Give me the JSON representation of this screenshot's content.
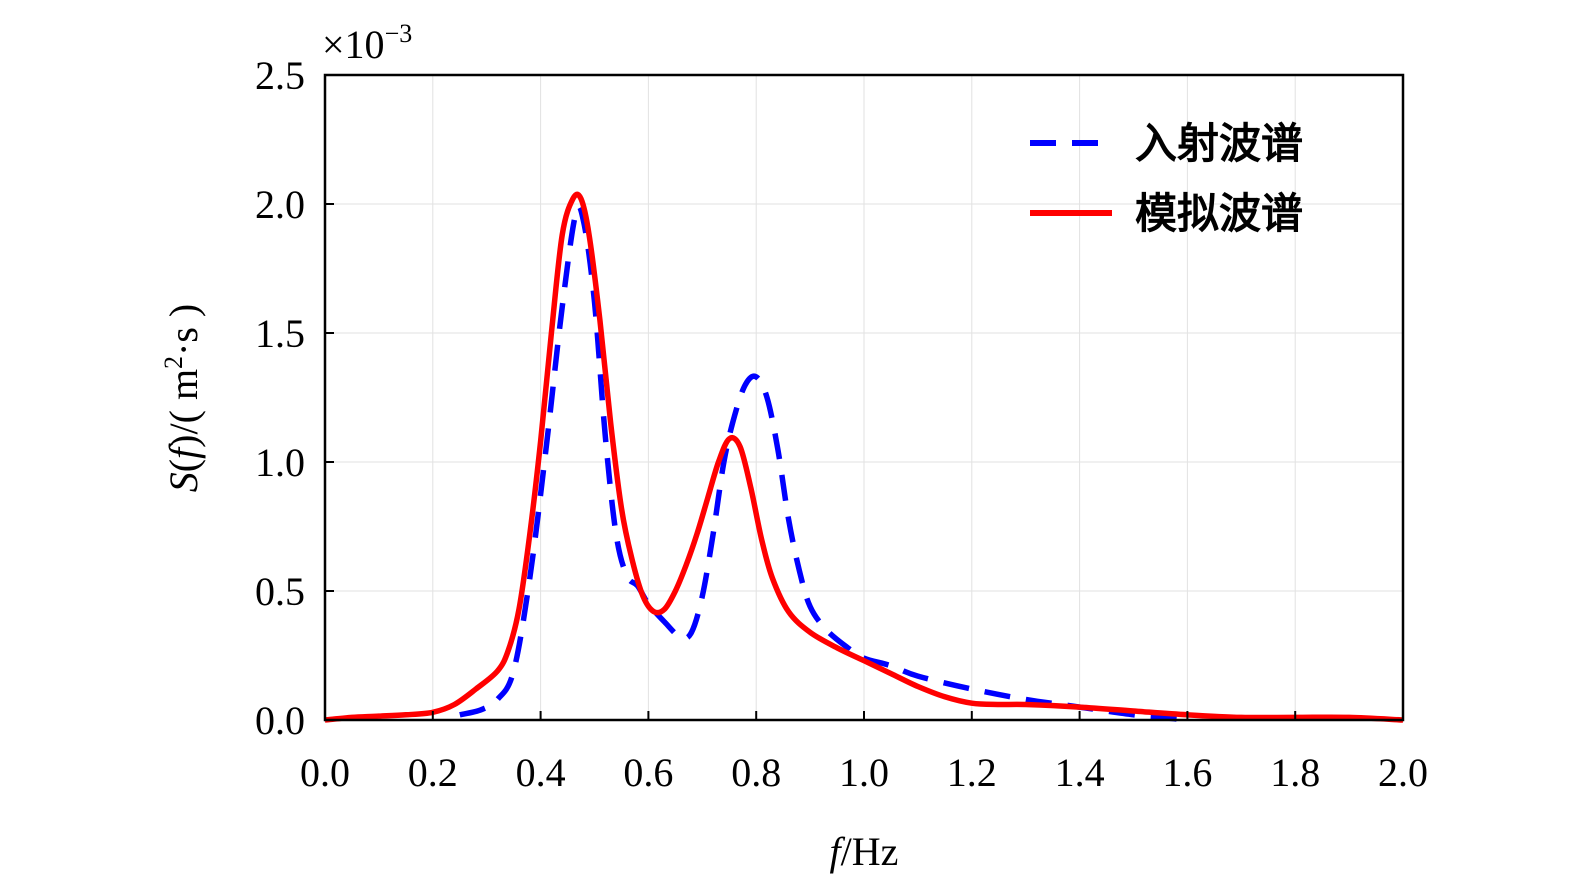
{
  "chart_data": {
    "type": "line",
    "xlabel": {
      "italic": "f",
      "rest": "/Hz"
    },
    "ylabel": {
      "italic": "S",
      "open": "(",
      "italic2": "f",
      "rest": ")/( m",
      "sup": "2",
      "rest2": "·s )"
    },
    "y_multiplier": {
      "prefix": "×10",
      "exponent": "−3"
    },
    "xlim": [
      0,
      2.0
    ],
    "ylim": [
      0,
      2.5
    ],
    "xticks": [
      "0.0",
      "0.2",
      "0.4",
      "0.6",
      "0.8",
      "1.0",
      "1.2",
      "1.4",
      "1.6",
      "1.8",
      "2.0"
    ],
    "yticks": [
      "0.0",
      "0.5",
      "1.0",
      "1.5",
      "2.0",
      "2.5"
    ],
    "grid": true,
    "legend_position": "top-right",
    "series": [
      {
        "name": "入射波谱",
        "color": "#0000ff",
        "style": "dashed",
        "x": [
          0.25,
          0.29,
          0.32,
          0.35,
          0.38,
          0.41,
          0.44,
          0.465,
          0.48,
          0.5,
          0.52,
          0.54,
          0.56,
          0.58,
          0.6,
          0.63,
          0.66,
          0.68,
          0.7,
          0.72,
          0.74,
          0.76,
          0.78,
          0.8,
          0.82,
          0.84,
          0.86,
          0.88,
          0.9,
          0.93,
          0.97,
          1.0,
          1.05,
          1.1,
          1.2,
          1.3,
          1.4,
          1.5,
          1.55,
          1.6
        ],
        "y": [
          0.02,
          0.04,
          0.08,
          0.19,
          0.55,
          1.05,
          1.6,
          1.96,
          1.93,
          1.62,
          1.1,
          0.72,
          0.56,
          0.52,
          0.45,
          0.38,
          0.32,
          0.34,
          0.48,
          0.72,
          1.0,
          1.18,
          1.3,
          1.33,
          1.25,
          1.05,
          0.78,
          0.58,
          0.44,
          0.35,
          0.28,
          0.24,
          0.21,
          0.17,
          0.12,
          0.08,
          0.05,
          0.02,
          0.01,
          0.0
        ]
      },
      {
        "name": "模拟波谱",
        "color": "#ff0000",
        "style": "solid",
        "x": [
          0.0,
          0.05,
          0.1,
          0.15,
          0.2,
          0.24,
          0.28,
          0.32,
          0.34,
          0.36,
          0.38,
          0.4,
          0.42,
          0.44,
          0.46,
          0.475,
          0.49,
          0.51,
          0.53,
          0.55,
          0.57,
          0.59,
          0.61,
          0.63,
          0.65,
          0.67,
          0.69,
          0.71,
          0.73,
          0.75,
          0.77,
          0.79,
          0.81,
          0.83,
          0.86,
          0.9,
          0.95,
          1.0,
          1.05,
          1.1,
          1.15,
          1.2,
          1.25,
          1.3,
          1.4,
          1.5,
          1.6,
          1.7,
          1.8,
          1.9,
          2.0
        ],
        "y": [
          0.0,
          0.01,
          0.015,
          0.02,
          0.03,
          0.06,
          0.12,
          0.19,
          0.27,
          0.43,
          0.72,
          1.08,
          1.5,
          1.88,
          2.02,
          2.02,
          1.88,
          1.55,
          1.15,
          0.82,
          0.62,
          0.48,
          0.42,
          0.43,
          0.5,
          0.6,
          0.72,
          0.86,
          1.0,
          1.09,
          1.06,
          0.9,
          0.7,
          0.55,
          0.42,
          0.34,
          0.28,
          0.23,
          0.18,
          0.13,
          0.09,
          0.065,
          0.06,
          0.06,
          0.05,
          0.035,
          0.02,
          0.01,
          0.01,
          0.01,
          0.0
        ]
      }
    ]
  }
}
